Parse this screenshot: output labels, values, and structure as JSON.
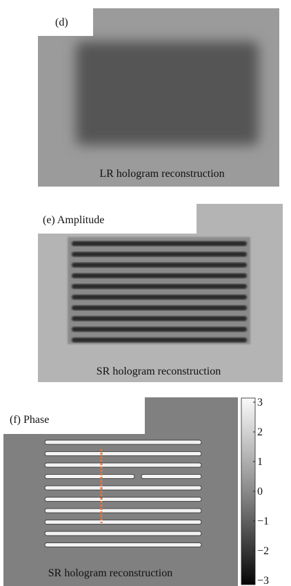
{
  "panels": [
    {
      "label": "(d)",
      "caption": "LR hologram reconstruction"
    },
    {
      "label": "(e) Amplitude",
      "caption": "SR hologram reconstruction"
    },
    {
      "label": "(f) Phase",
      "caption": "SR hologram reconstruction"
    }
  ],
  "colorbar": {
    "ticks": [
      "3",
      "2",
      "1",
      "0",
      "−1",
      "−2",
      "−3"
    ]
  }
}
